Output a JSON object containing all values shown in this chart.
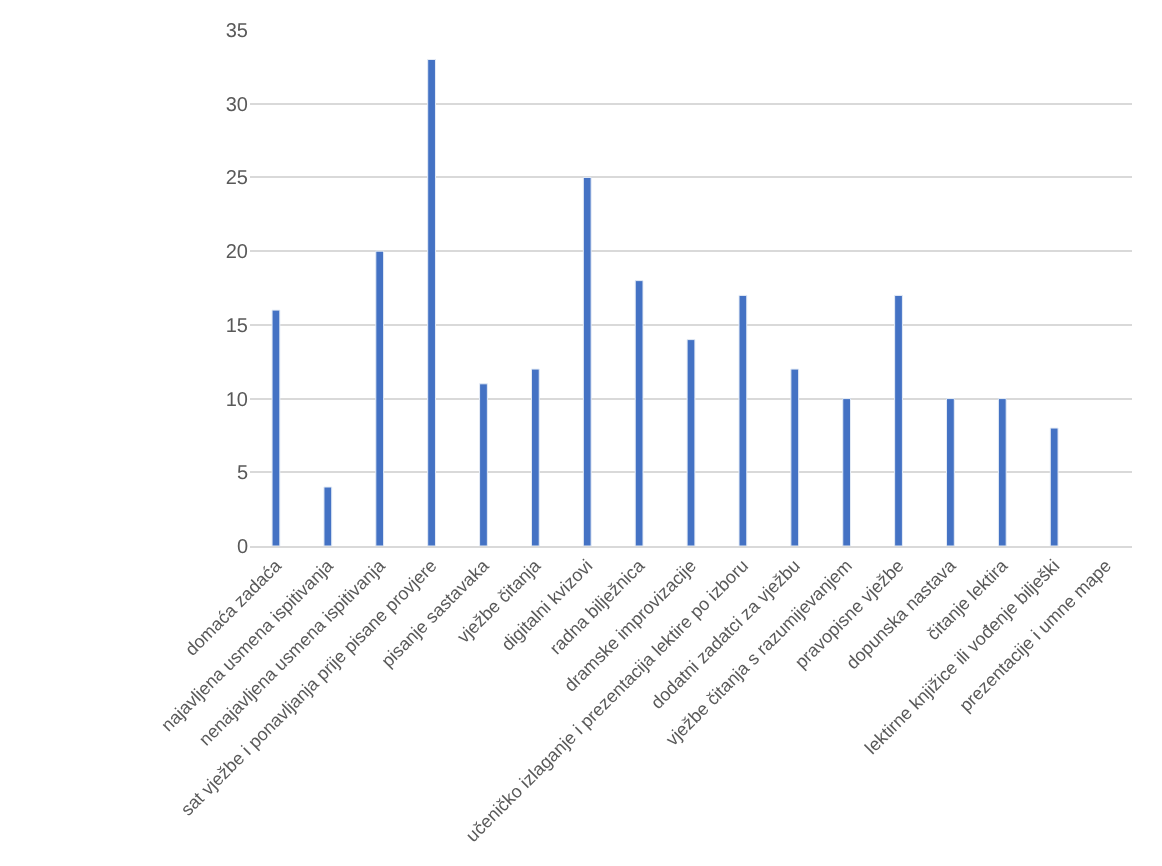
{
  "chart_data": {
    "type": "bar",
    "categories": [
      "domaća zadaća",
      "najavljena usmena ispitivanja",
      "nenajavljena usmena ispitivanja",
      "sat vježbe i ponavljanja prije pisane provjere",
      "pisanje sastavaka",
      "vježbe čitanja",
      "digitalni kvizovi",
      "radna bilježnica",
      "dramske improvizacije",
      "učeničko izlaganje i prezentacija lektire po izboru",
      "dodatni zadatci za vježbu",
      "vježbe čitanja s razumijevanjem",
      "pravopisne vježbe",
      "dopunska nastava",
      "čitanje lektira",
      "lektirne knjižice ili vođenje bilješki",
      "prezentacije i umne mape"
    ],
    "values": [
      16,
      4,
      20,
      33,
      11,
      12,
      25,
      18,
      14,
      17,
      12,
      10,
      17,
      10,
      10,
      8,
      null
    ],
    "color": "#4472c4",
    "ylim": [
      0,
      35
    ],
    "yticks": [
      0,
      5,
      10,
      15,
      20,
      25,
      30,
      35
    ],
    "grid": "y",
    "legend": false
  }
}
